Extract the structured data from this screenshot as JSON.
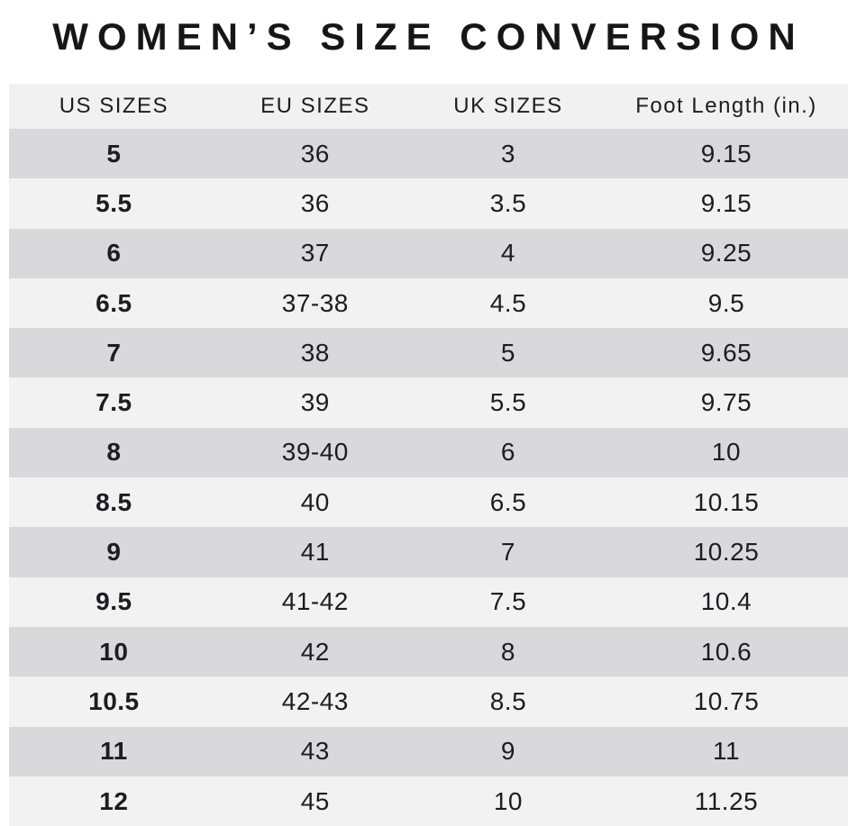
{
  "title": "WOMEN’S SIZE CONVERSION",
  "colors": {
    "title_text": "#161616",
    "header_bg": "#f1f1f2",
    "row_dark": "#d9d9db",
    "row_light": "#f2f2f3",
    "cell_text": "#1d1d1f"
  },
  "chart_data": {
    "type": "table",
    "title": "WOMEN’S SIZE CONVERSION",
    "columns": [
      "US SIZES",
      "EU SIZES",
      "UK SIZES",
      "Foot Length (in.)"
    ],
    "rows": [
      [
        "5",
        "36",
        "3",
        "9.15"
      ],
      [
        "5.5",
        "36",
        "3.5",
        "9.15"
      ],
      [
        "6",
        "37",
        "4",
        "9.25"
      ],
      [
        "6.5",
        "37-38",
        "4.5",
        "9.5"
      ],
      [
        "7",
        "38",
        "5",
        "9.65"
      ],
      [
        "7.5",
        "39",
        "5.5",
        "9.75"
      ],
      [
        "8",
        "39-40",
        "6",
        "10"
      ],
      [
        "8.5",
        "40",
        "6.5",
        "10.15"
      ],
      [
        "9",
        "41",
        "7",
        "10.25"
      ],
      [
        "9.5",
        "41-42",
        "7.5",
        "10.4"
      ],
      [
        "10",
        "42",
        "8",
        "10.6"
      ],
      [
        "10.5",
        "42-43",
        "8.5",
        "10.75"
      ],
      [
        "11",
        "43",
        "9",
        "11"
      ],
      [
        "12",
        "45",
        "10",
        "11.25"
      ]
    ],
    "layout": {
      "row_striping": "alternating gray/light starting dark",
      "alignment": "center",
      "grid": false,
      "us_sizes_column_bold": true
    }
  }
}
